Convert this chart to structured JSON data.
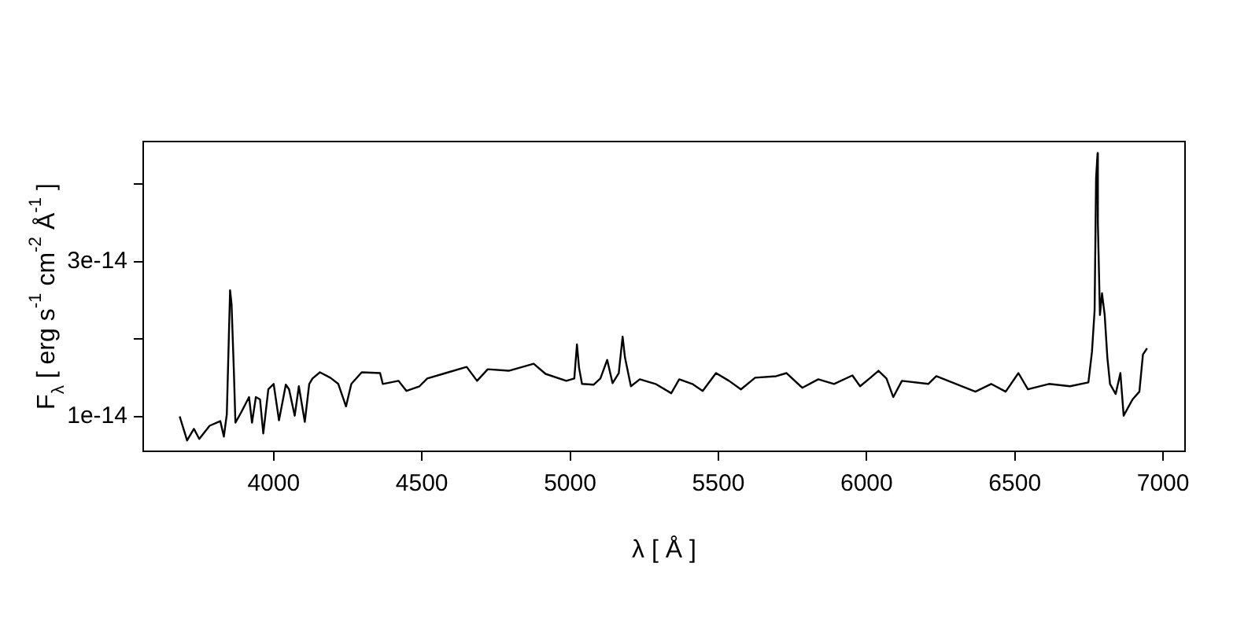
{
  "chart_data": {
    "type": "line",
    "xlabel": "λ [ Å ]",
    "ylabel": "F$_{λ}$ [ erg s$^{-1}$ cm$^{-2}$ Å$^{-1}$ ]",
    "xlim": [
      3560,
      7074
    ],
    "xticks": [
      4000,
      4500,
      5000,
      5500,
      6000,
      6500,
      7000
    ],
    "ylim": [
      5.5e-15,
      4.55e-14
    ],
    "yticks": [
      {
        "value": 1e-14,
        "label": "1e-14"
      },
      {
        "value": 2e-14,
        "label": null
      },
      {
        "value": 3e-14,
        "label": "3e-14"
      },
      {
        "value": 4e-14,
        "label": null
      }
    ],
    "grid": false,
    "legend": false,
    "marker": "none",
    "line_style": "solid",
    "series": [
      {
        "color": "#000000",
        "x": [
          3683,
          3708,
          3731,
          3749,
          3784,
          3820,
          3832,
          3842,
          3853,
          3858,
          3866,
          3871,
          3890,
          3917,
          3927,
          3940,
          3954,
          3965,
          3982,
          4000,
          4018,
          4041,
          4052,
          4071,
          4085,
          4105,
          4120,
          4131,
          4156,
          4191,
          4218,
          4244,
          4262,
          4297,
          4359,
          4368,
          4421,
          4448,
          4492,
          4518,
          4580,
          4651,
          4686,
          4722,
          4793,
          4877,
          4917,
          4987,
          5014,
          5023,
          5030,
          5040,
          5079,
          5102,
          5125,
          5143,
          5164,
          5177,
          5185,
          5205,
          5235,
          5288,
          5341,
          5368,
          5412,
          5447,
          5492,
          5536,
          5576,
          5624,
          5695,
          5730,
          5783,
          5837,
          5890,
          5952,
          5978,
          6013,
          6040,
          6067,
          6090,
          6119,
          6208,
          6235,
          6367,
          6420,
          6469,
          6512,
          6544,
          6615,
          6686,
          6748,
          6760,
          6769,
          6774,
          6779,
          6780,
          6787,
          6794,
          6803,
          6812,
          6821,
          6840,
          6856,
          6867,
          6897,
          6920,
          6932,
          6946
        ],
        "values": [
          1e-14,
          6.9e-15,
          8.4e-15,
          7.1e-15,
          8.8e-15,
          9.4e-15,
          7.4e-15,
          1.03e-14,
          2.63e-14,
          2.45e-14,
          1.56e-14,
          9.2e-15,
          1.05e-14,
          1.25e-14,
          9.2e-15,
          1.25e-14,
          1.22e-14,
          7.8e-15,
          1.35e-14,
          1.42e-14,
          9.5e-15,
          1.41e-14,
          1.35e-14,
          1.01e-14,
          1.39e-14,
          9.3e-15,
          1.42e-14,
          1.49e-14,
          1.57e-14,
          1.5e-14,
          1.42e-14,
          1.13e-14,
          1.42e-14,
          1.57e-14,
          1.56e-14,
          1.42e-14,
          1.46e-14,
          1.33e-14,
          1.39e-14,
          1.49e-14,
          1.56e-14,
          1.64e-14,
          1.46e-14,
          1.61e-14,
          1.59e-14,
          1.68e-14,
          1.55e-14,
          1.46e-14,
          1.49e-14,
          1.93e-14,
          1.63e-14,
          1.42e-14,
          1.41e-14,
          1.49e-14,
          1.73e-14,
          1.43e-14,
          1.56e-14,
          2.03e-14,
          1.76e-14,
          1.39e-14,
          1.48e-14,
          1.42e-14,
          1.3e-14,
          1.48e-14,
          1.42e-14,
          1.33e-14,
          1.56e-14,
          1.46e-14,
          1.35e-14,
          1.5e-14,
          1.52e-14,
          1.56e-14,
          1.37e-14,
          1.48e-14,
          1.42e-14,
          1.53e-14,
          1.39e-14,
          1.5e-14,
          1.59e-14,
          1.49e-14,
          1.25e-14,
          1.46e-14,
          1.42e-14,
          1.52e-14,
          1.32e-14,
          1.42e-14,
          1.32e-14,
          1.56e-14,
          1.35e-14,
          1.42e-14,
          1.39e-14,
          1.44e-14,
          1.83e-14,
          2.37e-14,
          4.08e-14,
          4.4e-14,
          3.5e-14,
          2.31e-14,
          2.59e-14,
          2.31e-14,
          1.76e-14,
          1.42e-14,
          1.29e-14,
          1.56e-14,
          1.01e-14,
          1.22e-14,
          1.32e-14,
          1.8e-14,
          1.88e-14
        ]
      }
    ]
  }
}
